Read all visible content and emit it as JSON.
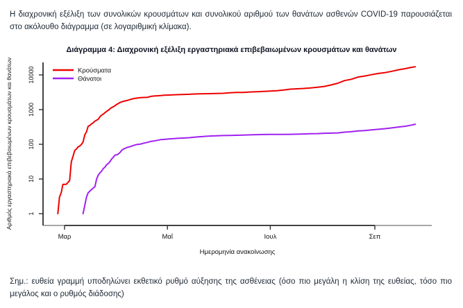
{
  "page": {
    "intro": "Η διαχρονική εξέλιξη των συνολικών κρουσμάτων και συνολικού αριθμού των θανάτων ασθενών COVID-19 παρουσιάζεται στο ακόλουθο διάγραμμα (σε λογαριθμική κλίμακα).",
    "footnote": "Σημ.: ευθεία γραμμή υποδηλώνει εκθετικό ρυθμό αύξησης της ασθένειας (όσο πιο μεγάλη η κλίση της ευθείας, τόσο πιο μεγάλος και ο ρυθμός διάδοσης)"
  },
  "chart_data": {
    "type": "line",
    "title": "Διάγραμμα 4: Διαχρονική εξέλιξη εργαστηριακά επιβεβαιωμένων κρουσμάτων και θανάτων",
    "xlabel": "Ημερομηνία ανακοίνωσης",
    "ylabel": "Αριθμός εργαστηριακά επιβεβαιωμένων κρουσμάτων και θανάτων",
    "y_scale": "log10",
    "ylim": [
      1,
      20000
    ],
    "y_ticks": [
      1,
      10,
      100,
      1000,
      10000
    ],
    "grid": false,
    "legend_position": "top-left",
    "x_unit": "days since first point (2020-02-26)",
    "x_ticks": [
      {
        "label": "Μαρ",
        "day": 4
      },
      {
        "label": "Μαΐ",
        "day": 65
      },
      {
        "label": "Ιουλ",
        "day": 126
      },
      {
        "label": "Σεπ",
        "day": 188
      }
    ],
    "series": [
      {
        "name": "Κρούσματα",
        "color": "#ee0000",
        "points": [
          [
            0,
            1
          ],
          [
            1,
            3
          ],
          [
            2,
            4
          ],
          [
            3,
            7
          ],
          [
            5,
            7
          ],
          [
            7,
            9
          ],
          [
            8,
            31
          ],
          [
            9,
            45
          ],
          [
            10,
            66
          ],
          [
            11,
            73
          ],
          [
            12,
            84
          ],
          [
            13,
            89
          ],
          [
            14,
            99
          ],
          [
            15,
            117
          ],
          [
            16,
            190
          ],
          [
            17,
            228
          ],
          [
            18,
            331
          ],
          [
            19,
            352
          ],
          [
            20,
            387
          ],
          [
            21,
            418
          ],
          [
            22,
            464
          ],
          [
            23,
            495
          ],
          [
            24,
            530
          ],
          [
            25,
            624
          ],
          [
            26,
            695
          ],
          [
            27,
            743
          ],
          [
            28,
            821
          ],
          [
            29,
            892
          ],
          [
            30,
            966
          ],
          [
            31,
            1061
          ],
          [
            32,
            1156
          ],
          [
            33,
            1212
          ],
          [
            34,
            1314
          ],
          [
            35,
            1415
          ],
          [
            36,
            1514
          ],
          [
            37,
            1613
          ],
          [
            38,
            1673
          ],
          [
            39,
            1735
          ],
          [
            41,
            1832
          ],
          [
            43,
            1955
          ],
          [
            45,
            2081
          ],
          [
            47,
            2145
          ],
          [
            49,
            2207
          ],
          [
            51,
            2235
          ],
          [
            53,
            2245
          ],
          [
            55,
            2401
          ],
          [
            57,
            2463
          ],
          [
            59,
            2506
          ],
          [
            61,
            2534
          ],
          [
            63,
            2591
          ],
          [
            66,
            2626
          ],
          [
            69,
            2678
          ],
          [
            72,
            2710
          ],
          [
            75,
            2744
          ],
          [
            78,
            2770
          ],
          [
            81,
            2819
          ],
          [
            84,
            2840
          ],
          [
            87,
            2867
          ],
          [
            90,
            2882
          ],
          [
            94,
            2909
          ],
          [
            98,
            2952
          ],
          [
            102,
            3049
          ],
          [
            106,
            3112
          ],
          [
            110,
            3134
          ],
          [
            114,
            3227
          ],
          [
            118,
            3287
          ],
          [
            122,
            3343
          ],
          [
            126,
            3432
          ],
          [
            130,
            3511
          ],
          [
            134,
            3672
          ],
          [
            138,
            3883
          ],
          [
            142,
            3983
          ],
          [
            146,
            4077
          ],
          [
            150,
            4227
          ],
          [
            154,
            4401
          ],
          [
            158,
            4662
          ],
          [
            162,
            5123
          ],
          [
            166,
            5749
          ],
          [
            170,
            6858
          ],
          [
            174,
            7472
          ],
          [
            178,
            8664
          ],
          [
            182,
            9280
          ],
          [
            186,
            10134
          ],
          [
            190,
            10998
          ],
          [
            194,
            11663
          ],
          [
            198,
            12734
          ],
          [
            202,
            14041
          ],
          [
            206,
            15142
          ],
          [
            209,
            16286
          ],
          [
            212,
            17228
          ]
        ]
      },
      {
        "name": "Θάνατοι",
        "color": "#a020f0",
        "points": [
          [
            15,
            1
          ],
          [
            17,
            3
          ],
          [
            18,
            4
          ],
          [
            20,
            5
          ],
          [
            22,
            6
          ],
          [
            23,
            10
          ],
          [
            24,
            13
          ],
          [
            25,
            15
          ],
          [
            26,
            17
          ],
          [
            27,
            20
          ],
          [
            28,
            22
          ],
          [
            29,
            26
          ],
          [
            30,
            28
          ],
          [
            31,
            32
          ],
          [
            32,
            38
          ],
          [
            33,
            43
          ],
          [
            34,
            49
          ],
          [
            35,
            50
          ],
          [
            36,
            53
          ],
          [
            37,
            59
          ],
          [
            38,
            68
          ],
          [
            39,
            73
          ],
          [
            41,
            81
          ],
          [
            43,
            86
          ],
          [
            45,
            93
          ],
          [
            47,
            99
          ],
          [
            49,
            101
          ],
          [
            51,
            108
          ],
          [
            53,
            113
          ],
          [
            55,
            121
          ],
          [
            57,
            125
          ],
          [
            59,
            130
          ],
          [
            61,
            136
          ],
          [
            63,
            138
          ],
          [
            66,
            143
          ],
          [
            69,
            146
          ],
          [
            72,
            150
          ],
          [
            75,
            152
          ],
          [
            78,
            155
          ],
          [
            81,
            160
          ],
          [
            84,
            165
          ],
          [
            87,
            169
          ],
          [
            90,
            173
          ],
          [
            94,
            175
          ],
          [
            98,
            179
          ],
          [
            102,
            180
          ],
          [
            106,
            182
          ],
          [
            110,
            184
          ],
          [
            114,
            187
          ],
          [
            118,
            190
          ],
          [
            122,
            191
          ],
          [
            126,
            192
          ],
          [
            130,
            193
          ],
          [
            134,
            193
          ],
          [
            138,
            194
          ],
          [
            142,
            196
          ],
          [
            146,
            199
          ],
          [
            150,
            201
          ],
          [
            154,
            203
          ],
          [
            158,
            208
          ],
          [
            162,
            210
          ],
          [
            166,
            213
          ],
          [
            170,
            224
          ],
          [
            174,
            230
          ],
          [
            178,
            242
          ],
          [
            182,
            249
          ],
          [
            186,
            260
          ],
          [
            190,
            271
          ],
          [
            194,
            282
          ],
          [
            198,
            297
          ],
          [
            202,
            315
          ],
          [
            206,
            331
          ],
          [
            209,
            352
          ],
          [
            212,
            379
          ]
        ]
      }
    ]
  }
}
